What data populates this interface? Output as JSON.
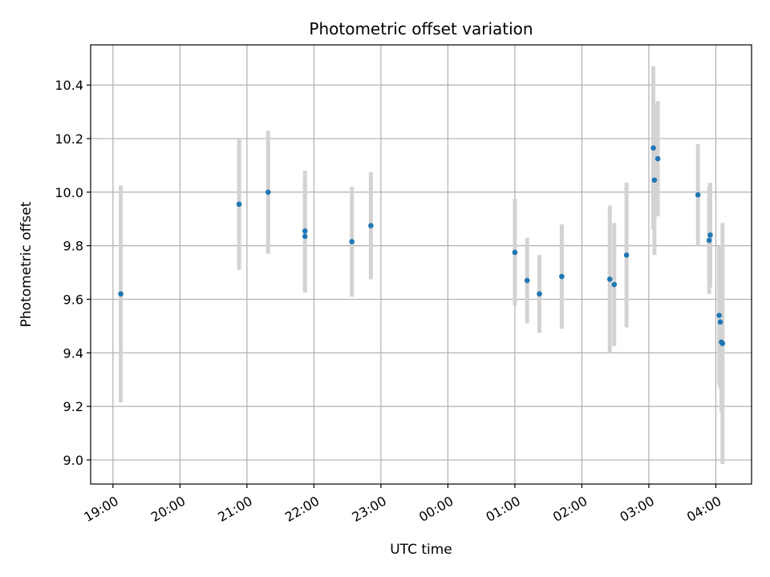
{
  "chart_data": {
    "type": "scatter",
    "title": "Photometric offset variation",
    "xlabel": "UTC time",
    "ylabel": "Photometric offset",
    "x_tick_labels": [
      "19:00",
      "20:00",
      "21:00",
      "22:00",
      "23:00",
      "00:00",
      "01:00",
      "02:00",
      "03:00",
      "04:00"
    ],
    "y_tick_labels": [
      "9.0",
      "9.2",
      "9.4",
      "9.6",
      "9.8",
      "10.0",
      "10.2",
      "10.4"
    ],
    "y_ticks": [
      9.0,
      9.2,
      9.4,
      9.6,
      9.8,
      10.0,
      10.2,
      10.4
    ],
    "ylim": [
      8.91,
      10.55
    ],
    "xlim": [
      "18:40",
      "04:32"
    ],
    "grid": true,
    "point_color": "#1f77b4",
    "errorbar_color": "#d3d3d3",
    "series": [
      {
        "points": [
          {
            "x": "19:07",
            "y": 9.62,
            "err": 0.405
          },
          {
            "x": "20:53",
            "y": 9.955,
            "err": 0.245
          },
          {
            "x": "21:19",
            "y": 10.0,
            "err": 0.23
          },
          {
            "x": "21:52",
            "y": 9.855,
            "err": 0.225
          },
          {
            "x": "21:52",
            "y": 9.835,
            "err": 0.21
          },
          {
            "x": "22:34",
            "y": 9.815,
            "err": 0.205
          },
          {
            "x": "22:51",
            "y": 9.875,
            "err": 0.2
          },
          {
            "x": "01:00",
            "y": 9.775,
            "err": 0.2
          },
          {
            "x": "01:11",
            "y": 9.67,
            "err": 0.16
          },
          {
            "x": "01:22",
            "y": 9.62,
            "err": 0.145
          },
          {
            "x": "01:42",
            "y": 9.685,
            "err": 0.195
          },
          {
            "x": "02:25",
            "y": 9.675,
            "err": 0.275
          },
          {
            "x": "02:29",
            "y": 9.655,
            "err": 0.23
          },
          {
            "x": "02:40",
            "y": 9.765,
            "err": 0.27
          },
          {
            "x": "03:04",
            "y": 10.165,
            "err": 0.305
          },
          {
            "x": "03:05",
            "y": 10.045,
            "err": 0.28
          },
          {
            "x": "03:08",
            "y": 10.125,
            "err": 0.215
          },
          {
            "x": "03:44",
            "y": 9.99,
            "err": 0.19
          },
          {
            "x": "03:55",
            "y": 9.84,
            "err": 0.195
          },
          {
            "x": "03:54",
            "y": 9.82,
            "err": 0.2
          },
          {
            "x": "04:03",
            "y": 9.54,
            "err": 0.26
          },
          {
            "x": "04:04",
            "y": 9.515,
            "err": 0.25
          },
          {
            "x": "04:05",
            "y": 9.44,
            "err": 0.26
          },
          {
            "x": "04:06",
            "y": 9.435,
            "err": 0.45
          }
        ]
      }
    ]
  }
}
